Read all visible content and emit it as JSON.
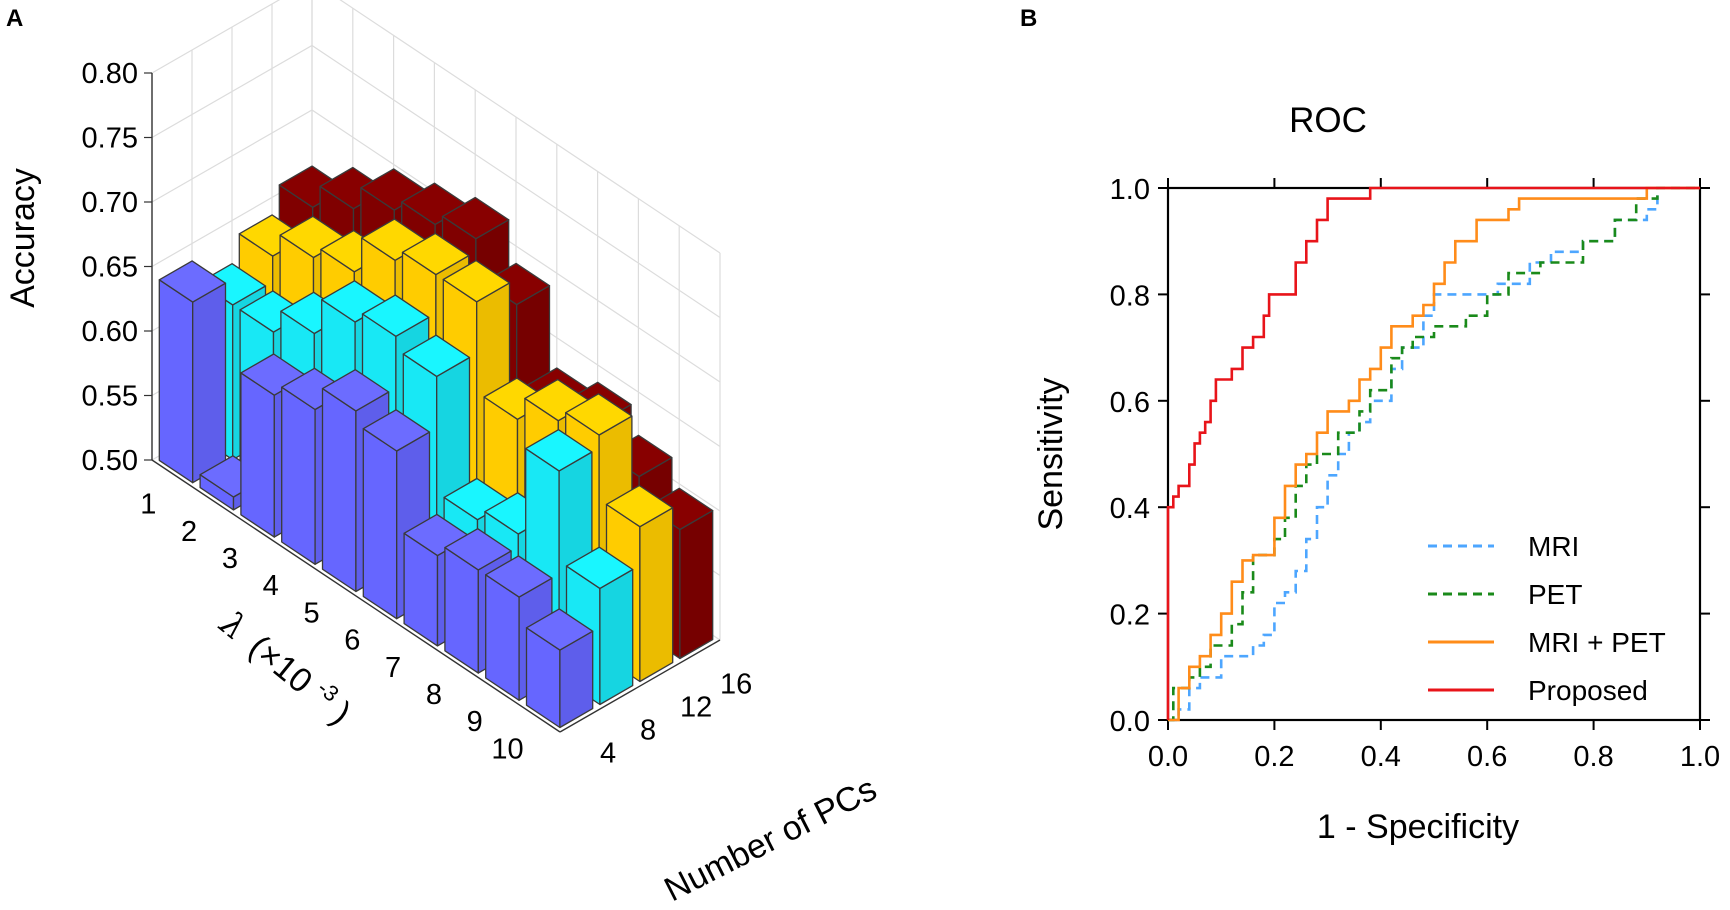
{
  "panels": {
    "a": "A",
    "b": "B"
  },
  "colors": {
    "pcs4": "#6666ff",
    "pcs8": "#18e8f5",
    "pcs12": "#ffcc00",
    "pcs16": "#800000",
    "mri": "#4da6ff",
    "pet": "#1a8a1a",
    "mri_pet": "#ff8c1a",
    "proposed": "#e8141a"
  },
  "chart_data": [
    {
      "type": "bar3d",
      "panel": "A",
      "zlabel": "Accuracy",
      "xlabel": "λ (×10⁻³)",
      "ylabel": "Number of PCs",
      "lambda_label_symbol": "λ",
      "lambda_label_rest": "(×10",
      "lambda_label_exp": "-3",
      "lambda_label_close": ")",
      "zlim": [
        0.5,
        0.8
      ],
      "z_ticks": [
        "0.50",
        "0.55",
        "0.60",
        "0.65",
        "0.70",
        "0.75",
        "0.80"
      ],
      "lambda_ticks": [
        "1",
        "2",
        "3",
        "4",
        "5",
        "6",
        "7",
        "8",
        "9",
        "10"
      ],
      "pcs_ticks": [
        "4",
        "8",
        "12",
        "16"
      ],
      "pcs_values": [
        4,
        8,
        12,
        16
      ],
      "lambda_values": [
        1,
        2,
        3,
        4,
        5,
        6,
        7,
        8,
        9,
        10
      ],
      "accuracy": [
        [
          0.64,
          0.51,
          0.61,
          0.62,
          0.64,
          0.63,
          0.57,
          0.58,
          0.58,
          0.56
        ],
        [
          0.62,
          0.62,
          0.64,
          0.67,
          0.68,
          0.67,
          0.58,
          0.59,
          0.66,
          0.59
        ],
        [
          0.64,
          0.66,
          0.67,
          0.7,
          0.71,
          0.71,
          0.64,
          0.66,
          0.67,
          0.62
        ],
        [
          0.66,
          0.68,
          0.7,
          0.71,
          0.72,
          0.69,
          0.63,
          0.64,
          0.62,
          0.6
        ]
      ]
    },
    {
      "type": "line",
      "panel": "B",
      "title": "ROC",
      "xlabel": "1 - Specificity",
      "ylabel": "Sensitivity",
      "xlim": [
        0,
        1
      ],
      "ylim": [
        0,
        1
      ],
      "x_ticks": [
        "0.0",
        "0.2",
        "0.4",
        "0.6",
        "0.8",
        "1.0"
      ],
      "y_ticks": [
        "0.0",
        "0.2",
        "0.4",
        "0.6",
        "0.8",
        "1.0"
      ],
      "series": [
        {
          "name": "MRI",
          "key": "mri",
          "dash": "9,6",
          "points": [
            [
              0,
              0
            ],
            [
              0.02,
              0
            ],
            [
              0.02,
              0.02
            ],
            [
              0.04,
              0.02
            ],
            [
              0.04,
              0.06
            ],
            [
              0.06,
              0.06
            ],
            [
              0.06,
              0.08
            ],
            [
              0.1,
              0.08
            ],
            [
              0.1,
              0.12
            ],
            [
              0.16,
              0.12
            ],
            [
              0.16,
              0.14
            ],
            [
              0.18,
              0.14
            ],
            [
              0.18,
              0.16
            ],
            [
              0.2,
              0.16
            ],
            [
              0.2,
              0.2
            ],
            [
              0.2,
              0.22
            ],
            [
              0.22,
              0.22
            ],
            [
              0.22,
              0.24
            ],
            [
              0.24,
              0.24
            ],
            [
              0.24,
              0.28
            ],
            [
              0.26,
              0.28
            ],
            [
              0.26,
              0.34
            ],
            [
              0.28,
              0.34
            ],
            [
              0.28,
              0.4
            ],
            [
              0.3,
              0.4
            ],
            [
              0.3,
              0.46
            ],
            [
              0.32,
              0.46
            ],
            [
              0.32,
              0.5
            ],
            [
              0.34,
              0.5
            ],
            [
              0.34,
              0.54
            ],
            [
              0.36,
              0.54
            ],
            [
              0.36,
              0.56
            ],
            [
              0.38,
              0.56
            ],
            [
              0.38,
              0.6
            ],
            [
              0.42,
              0.6
            ],
            [
              0.42,
              0.66
            ],
            [
              0.44,
              0.66
            ],
            [
              0.44,
              0.7
            ],
            [
              0.48,
              0.7
            ],
            [
              0.48,
              0.76
            ],
            [
              0.5,
              0.76
            ],
            [
              0.5,
              0.8
            ],
            [
              0.54,
              0.8
            ],
            [
              0.62,
              0.8
            ],
            [
              0.62,
              0.82
            ],
            [
              0.68,
              0.82
            ],
            [
              0.68,
              0.86
            ],
            [
              0.72,
              0.86
            ],
            [
              0.72,
              0.88
            ],
            [
              0.78,
              0.88
            ],
            [
              0.78,
              0.9
            ],
            [
              0.84,
              0.9
            ],
            [
              0.84,
              0.94
            ],
            [
              0.9,
              0.94
            ],
            [
              0.9,
              0.96
            ],
            [
              0.92,
              0.96
            ],
            [
              0.92,
              1.0
            ],
            [
              1.0,
              1.0
            ]
          ]
        },
        {
          "name": "PET",
          "key": "pet",
          "dash": "9,6",
          "points": [
            [
              0,
              0
            ],
            [
              0.01,
              0
            ],
            [
              0.01,
              0.06
            ],
            [
              0.04,
              0.06
            ],
            [
              0.04,
              0.08
            ],
            [
              0.06,
              0.08
            ],
            [
              0.06,
              0.1
            ],
            [
              0.08,
              0.1
            ],
            [
              0.08,
              0.14
            ],
            [
              0.12,
              0.14
            ],
            [
              0.12,
              0.18
            ],
            [
              0.14,
              0.18
            ],
            [
              0.14,
              0.24
            ],
            [
              0.16,
              0.24
            ],
            [
              0.16,
              0.31
            ],
            [
              0.2,
              0.31
            ],
            [
              0.2,
              0.34
            ],
            [
              0.22,
              0.34
            ],
            [
              0.22,
              0.38
            ],
            [
              0.24,
              0.38
            ],
            [
              0.24,
              0.44
            ],
            [
              0.26,
              0.44
            ],
            [
              0.26,
              0.48
            ],
            [
              0.28,
              0.48
            ],
            [
              0.28,
              0.5
            ],
            [
              0.32,
              0.5
            ],
            [
              0.32,
              0.54
            ],
            [
              0.36,
              0.54
            ],
            [
              0.36,
              0.58
            ],
            [
              0.38,
              0.58
            ],
            [
              0.38,
              0.62
            ],
            [
              0.42,
              0.62
            ],
            [
              0.42,
              0.68
            ],
            [
              0.44,
              0.68
            ],
            [
              0.44,
              0.7
            ],
            [
              0.46,
              0.7
            ],
            [
              0.46,
              0.72
            ],
            [
              0.5,
              0.72
            ],
            [
              0.5,
              0.74
            ],
            [
              0.56,
              0.74
            ],
            [
              0.56,
              0.76
            ],
            [
              0.6,
              0.76
            ],
            [
              0.6,
              0.8
            ],
            [
              0.64,
              0.8
            ],
            [
              0.64,
              0.84
            ],
            [
              0.7,
              0.84
            ],
            [
              0.7,
              0.86
            ],
            [
              0.78,
              0.86
            ],
            [
              0.78,
              0.9
            ],
            [
              0.84,
              0.9
            ],
            [
              0.84,
              0.94
            ],
            [
              0.88,
              0.94
            ],
            [
              0.88,
              0.98
            ],
            [
              0.92,
              0.98
            ],
            [
              0.92,
              1.0
            ],
            [
              1.0,
              1.0
            ]
          ]
        },
        {
          "name": "MRI + PET",
          "key": "mri_pet",
          "dash": "",
          "points": [
            [
              0,
              0
            ],
            [
              0.02,
              0
            ],
            [
              0.02,
              0.06
            ],
            [
              0.04,
              0.06
            ],
            [
              0.04,
              0.1
            ],
            [
              0.06,
              0.1
            ],
            [
              0.06,
              0.12
            ],
            [
              0.08,
              0.12
            ],
            [
              0.08,
              0.16
            ],
            [
              0.1,
              0.16
            ],
            [
              0.1,
              0.2
            ],
            [
              0.12,
              0.2
            ],
            [
              0.12,
              0.26
            ],
            [
              0.14,
              0.26
            ],
            [
              0.14,
              0.3
            ],
            [
              0.16,
              0.3
            ],
            [
              0.16,
              0.31
            ],
            [
              0.2,
              0.31
            ],
            [
              0.2,
              0.38
            ],
            [
              0.22,
              0.38
            ],
            [
              0.22,
              0.44
            ],
            [
              0.24,
              0.44
            ],
            [
              0.24,
              0.48
            ],
            [
              0.26,
              0.48
            ],
            [
              0.26,
              0.5
            ],
            [
              0.28,
              0.5
            ],
            [
              0.28,
              0.54
            ],
            [
              0.3,
              0.54
            ],
            [
              0.3,
              0.58
            ],
            [
              0.34,
              0.58
            ],
            [
              0.34,
              0.6
            ],
            [
              0.36,
              0.6
            ],
            [
              0.36,
              0.64
            ],
            [
              0.38,
              0.64
            ],
            [
              0.38,
              0.66
            ],
            [
              0.4,
              0.66
            ],
            [
              0.4,
              0.7
            ],
            [
              0.42,
              0.7
            ],
            [
              0.42,
              0.74
            ],
            [
              0.46,
              0.74
            ],
            [
              0.46,
              0.76
            ],
            [
              0.48,
              0.76
            ],
            [
              0.48,
              0.78
            ],
            [
              0.5,
              0.78
            ],
            [
              0.5,
              0.82
            ],
            [
              0.52,
              0.82
            ],
            [
              0.52,
              0.86
            ],
            [
              0.54,
              0.86
            ],
            [
              0.54,
              0.9
            ],
            [
              0.58,
              0.9
            ],
            [
              0.58,
              0.94
            ],
            [
              0.64,
              0.94
            ],
            [
              0.64,
              0.96
            ],
            [
              0.66,
              0.96
            ],
            [
              0.66,
              0.98
            ],
            [
              0.9,
              0.98
            ],
            [
              0.9,
              1.0
            ],
            [
              1.0,
              1.0
            ]
          ]
        },
        {
          "name": "Proposed",
          "key": "proposed",
          "dash": "",
          "points": [
            [
              0,
              0
            ],
            [
              0,
              0.4
            ],
            [
              0.01,
              0.4
            ],
            [
              0.01,
              0.42
            ],
            [
              0.02,
              0.42
            ],
            [
              0.02,
              0.44
            ],
            [
              0.04,
              0.44
            ],
            [
              0.04,
              0.48
            ],
            [
              0.05,
              0.48
            ],
            [
              0.05,
              0.52
            ],
            [
              0.06,
              0.52
            ],
            [
              0.06,
              0.54
            ],
            [
              0.07,
              0.54
            ],
            [
              0.07,
              0.56
            ],
            [
              0.08,
              0.56
            ],
            [
              0.08,
              0.6
            ],
            [
              0.09,
              0.6
            ],
            [
              0.09,
              0.64
            ],
            [
              0.12,
              0.64
            ],
            [
              0.12,
              0.66
            ],
            [
              0.14,
              0.66
            ],
            [
              0.14,
              0.7
            ],
            [
              0.16,
              0.7
            ],
            [
              0.16,
              0.72
            ],
            [
              0.18,
              0.72
            ],
            [
              0.18,
              0.76
            ],
            [
              0.19,
              0.76
            ],
            [
              0.19,
              0.8
            ],
            [
              0.24,
              0.8
            ],
            [
              0.24,
              0.86
            ],
            [
              0.26,
              0.86
            ],
            [
              0.26,
              0.9
            ],
            [
              0.28,
              0.9
            ],
            [
              0.28,
              0.94
            ],
            [
              0.3,
              0.94
            ],
            [
              0.3,
              0.98
            ],
            [
              0.38,
              0.98
            ],
            [
              0.38,
              1.0
            ],
            [
              0.7,
              1.0
            ],
            [
              1.0,
              1.0
            ]
          ]
        }
      ]
    }
  ]
}
